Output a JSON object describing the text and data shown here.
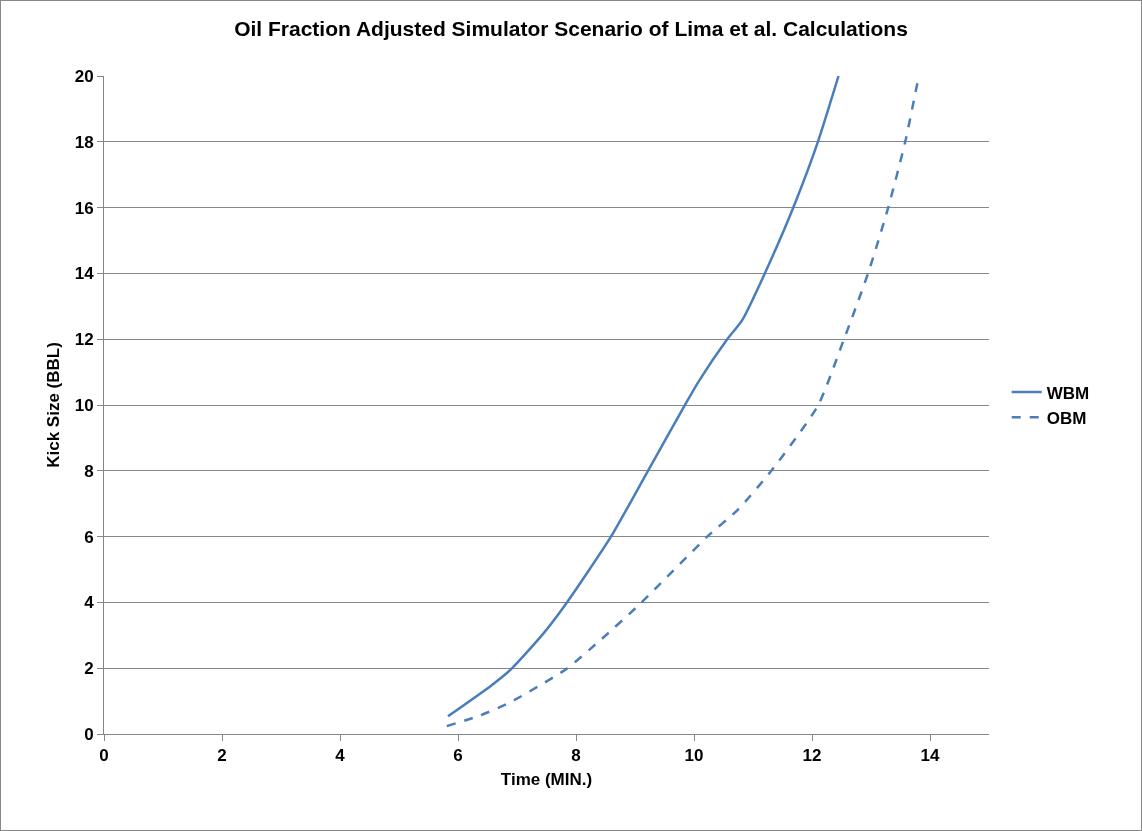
{
  "chart_data": {
    "type": "line",
    "title": "Oil Fraction Adjusted Simulator Scenario of Lima et al. Calculations",
    "xlabel": "Time (MIN.)",
    "ylabel": "Kick Size (BBL)",
    "xlim": [
      0,
      15
    ],
    "xticks": [
      0,
      2,
      4,
      6,
      8,
      10,
      12,
      14
    ],
    "ylim": [
      0,
      20
    ],
    "yticks": [
      0,
      2,
      4,
      6,
      8,
      10,
      12,
      14,
      16,
      18,
      20
    ],
    "grid": "y",
    "legend": "right",
    "marker": "none",
    "series": [
      {
        "name": "WBM",
        "color": "#4a7ebb",
        "line_style": "solid",
        "x": [
          5.83,
          6.56,
          6.9,
          7.46,
          7.84,
          8.59,
          9.22,
          9.84,
          10.08,
          10.56,
          10.82,
          11.2,
          11.68,
          12.1,
          12.45
        ],
        "values": [
          0.54,
          1.47,
          1.97,
          3.08,
          3.98,
          5.99,
          8.0,
          9.98,
          10.72,
          11.99,
          12.59,
          14.0,
          15.99,
          18.0,
          20.0
        ]
      },
      {
        "name": "OBM",
        "color": "#4a7ebb",
        "line_style": "dashed",
        "x": [
          5.81,
          6.34,
          6.86,
          7.83,
          8.43,
          9.1,
          10.22,
          10.75,
          11.31,
          12.1,
          12.54,
          12.95,
          13.29,
          13.58,
          13.81
        ],
        "values": [
          0.24,
          0.54,
          0.94,
          1.97,
          2.88,
          3.98,
          5.99,
          6.83,
          8.0,
          9.98,
          11.99,
          14.0,
          15.99,
          18.0,
          20.0
        ]
      }
    ]
  }
}
